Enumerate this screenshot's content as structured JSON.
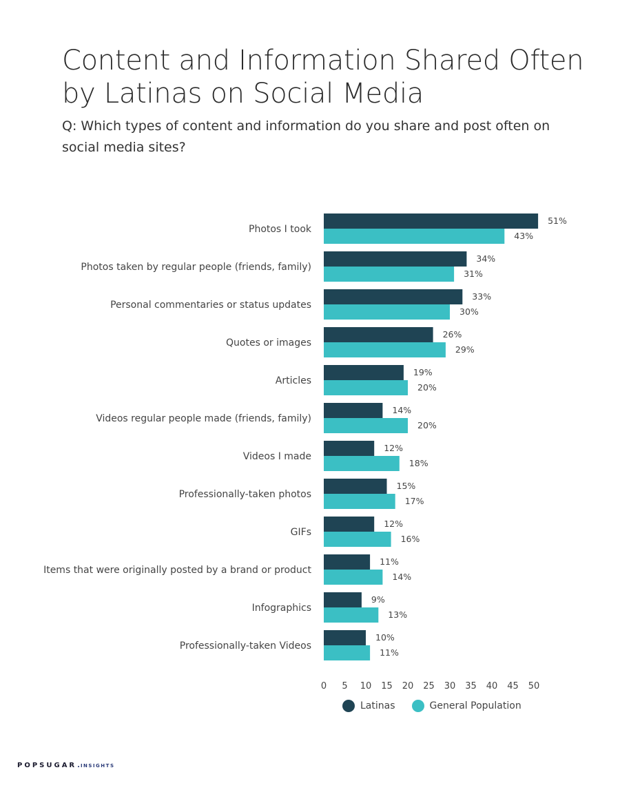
{
  "title": "Content and Information Shared Often by Latinas on Social Media",
  "question": "Q: Which types of content and information do you share and post often on social media sites?",
  "brand": {
    "name": "POPSUGAR",
    "dot": ".",
    "sub": "INSIGHTS"
  },
  "colors": {
    "latinas": "#1f4454",
    "general": "#3bbfc4",
    "text": "#444444"
  },
  "chart_data": {
    "type": "bar",
    "orientation": "horizontal",
    "categories": [
      "Photos I took",
      "Photos taken by regular people (friends, family)",
      "Personal commentaries or status updates",
      "Quotes or images",
      "Articles",
      "Videos regular people made (friends, family)",
      "Videos I made",
      "Professionally-taken photos",
      "GIFs",
      "Items that were originally posted by a brand or product",
      "Infographics",
      "Professionally-taken Videos"
    ],
    "series": [
      {
        "name": "Latinas",
        "values": [
          51,
          34,
          33,
          26,
          19,
          14,
          12,
          15,
          12,
          11,
          9,
          10
        ],
        "labels": [
          "51%",
          "34%",
          "33%",
          "26%",
          "19%",
          "14%",
          "12%",
          "15%",
          "12%",
          "11%",
          "9%",
          "10%"
        ]
      },
      {
        "name": "General Population",
        "values": [
          43,
          31,
          30,
          29,
          20,
          20,
          18,
          17,
          16,
          14,
          13,
          11
        ],
        "labels": [
          "43%",
          "31%",
          "30%",
          "29%",
          "20%",
          "20%",
          "18%",
          "17%",
          "16%",
          "14%",
          "13%",
          "11%"
        ]
      }
    ],
    "xticks": [
      "0",
      "5",
      "10",
      "15",
      "20",
      "25",
      "30",
      "35",
      "40",
      "45",
      "50"
    ],
    "xlim": [
      0,
      52
    ],
    "legend_position": "bottom"
  }
}
